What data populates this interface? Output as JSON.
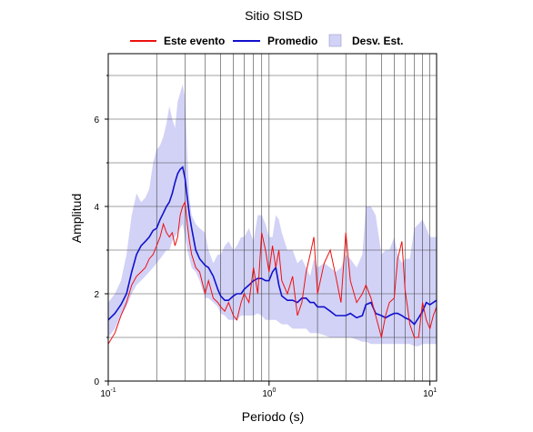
{
  "chart_data": {
    "type": "line",
    "title": "Sitio SISD",
    "xlabel": "Periodo (s)",
    "ylabel": "Amplitud",
    "x_scale": "log",
    "xlim": [
      0.1,
      11
    ],
    "ylim": [
      0,
      7.5
    ],
    "grid": true,
    "legend_position": "top",
    "x_ticks": [
      {
        "base": "10",
        "exp": "-1",
        "value": 0.1
      },
      {
        "base": "10",
        "exp": "0",
        "value": 1
      },
      {
        "base": "10",
        "exp": "1",
        "value": 10
      }
    ],
    "y_ticks": [
      {
        "label": "0",
        "value": 0
      },
      {
        "label": "2",
        "value": 2
      },
      {
        "label": "4",
        "value": 4
      },
      {
        "label": "6",
        "value": 6
      }
    ],
    "legend": {
      "event": "Este evento",
      "mean": "Promedio",
      "band": "Desv. Est."
    },
    "colors": {
      "event": "#ee1111",
      "mean": "#1111cc",
      "band": "#d2d2f7",
      "grid": "#444444"
    },
    "x": [
      0.1,
      0.11,
      0.12,
      0.13,
      0.14,
      0.15,
      0.16,
      0.17,
      0.18,
      0.19,
      0.2,
      0.21,
      0.22,
      0.23,
      0.24,
      0.25,
      0.26,
      0.27,
      0.28,
      0.29,
      0.3,
      0.31,
      0.32,
      0.33,
      0.35,
      0.37,
      0.4,
      0.42,
      0.45,
      0.48,
      0.5,
      0.53,
      0.56,
      0.6,
      0.63,
      0.67,
      0.7,
      0.75,
      0.8,
      0.85,
      0.9,
      0.95,
      1.0,
      1.05,
      1.1,
      1.15,
      1.2,
      1.3,
      1.4,
      1.5,
      1.6,
      1.7,
      1.8,
      1.9,
      2.0,
      2.2,
      2.4,
      2.6,
      2.8,
      3.0,
      3.2,
      3.5,
      3.8,
      4.0,
      4.3,
      4.6,
      5.0,
      5.3,
      5.6,
      6.0,
      6.3,
      6.7,
      7.0,
      7.5,
      8.0,
      8.5,
      9.0,
      9.5,
      10.0,
      10.5,
      11.0
    ],
    "series": [
      {
        "key": "event",
        "values": [
          0.85,
          1.1,
          1.5,
          1.8,
          2.2,
          2.4,
          2.5,
          2.6,
          2.8,
          2.9,
          3.1,
          3.3,
          3.6,
          3.4,
          3.3,
          3.4,
          3.1,
          3.3,
          3.8,
          4.0,
          4.1,
          3.6,
          3.2,
          2.9,
          2.6,
          2.5,
          2.0,
          2.3,
          1.9,
          1.8,
          1.7,
          1.6,
          1.8,
          1.5,
          1.4,
          1.8,
          2.0,
          1.8,
          2.6,
          2.0,
          3.4,
          3.0,
          2.5,
          3.1,
          2.6,
          3.0,
          2.3,
          2.0,
          2.4,
          1.5,
          1.8,
          2.5,
          2.9,
          3.3,
          2.0,
          2.7,
          3.0,
          2.4,
          1.8,
          3.4,
          2.3,
          1.8,
          2.0,
          2.2,
          1.9,
          1.5,
          1.0,
          1.5,
          1.8,
          1.9,
          2.8,
          3.2,
          2.1,
          1.3,
          1.0,
          1.0,
          1.8,
          1.4,
          1.2,
          1.5,
          1.7
        ]
      },
      {
        "key": "mean",
        "values": [
          1.4,
          1.55,
          1.75,
          2.0,
          2.5,
          2.9,
          3.1,
          3.2,
          3.3,
          3.45,
          3.5,
          3.7,
          3.85,
          4.0,
          4.1,
          4.3,
          4.55,
          4.75,
          4.85,
          4.9,
          4.65,
          4.2,
          3.8,
          3.5,
          3.0,
          2.8,
          2.65,
          2.6,
          2.4,
          2.1,
          1.95,
          1.85,
          1.85,
          1.95,
          2.0,
          2.0,
          2.1,
          2.2,
          2.3,
          2.35,
          2.35,
          2.3,
          2.3,
          2.5,
          2.6,
          2.2,
          1.95,
          1.85,
          1.85,
          1.8,
          1.9,
          1.9,
          1.8,
          1.8,
          1.7,
          1.7,
          1.6,
          1.5,
          1.5,
          1.5,
          1.55,
          1.45,
          1.5,
          1.75,
          1.8,
          1.55,
          1.5,
          1.45,
          1.5,
          1.55,
          1.55,
          1.5,
          1.45,
          1.4,
          1.3,
          1.45,
          1.6,
          1.8,
          1.75,
          1.8,
          1.85
        ]
      }
    ],
    "band": {
      "upper": [
        1.8,
        2.0,
        2.3,
        2.9,
        3.8,
        4.3,
        4.1,
        4.2,
        4.4,
        5.0,
        5.3,
        5.4,
        5.6,
        5.9,
        6.3,
        6.0,
        5.8,
        6.4,
        6.6,
        6.8,
        6.5,
        5.2,
        4.2,
        3.8,
        3.6,
        3.5,
        3.4,
        3.0,
        2.7,
        2.9,
        2.9,
        3.1,
        3.2,
        3.0,
        3.1,
        3.3,
        3.3,
        3.5,
        3.2,
        3.8,
        3.8,
        3.6,
        3.3,
        3.3,
        3.8,
        3.7,
        3.4,
        3.0,
        3.0,
        2.7,
        2.8,
        2.6,
        2.4,
        2.8,
        2.6,
        2.7,
        2.6,
        2.5,
        2.6,
        2.9,
        2.8,
        2.6,
        2.9,
        4.0,
        4.0,
        3.8,
        2.9,
        3.0,
        3.0,
        3.3,
        2.9,
        2.7,
        2.8,
        2.8,
        3.5,
        3.6,
        3.7,
        3.5,
        3.3,
        3.3,
        3.3
      ],
      "lower": [
        1.0,
        1.2,
        1.5,
        1.7,
        2.0,
        2.2,
        2.3,
        2.4,
        2.5,
        2.6,
        2.7,
        2.8,
        2.9,
        3.0,
        3.0,
        3.2,
        3.3,
        3.4,
        3.5,
        3.6,
        3.3,
        3.0,
        2.8,
        2.6,
        2.5,
        2.3,
        1.9,
        1.9,
        1.8,
        1.7,
        1.55,
        1.5,
        1.4,
        1.4,
        1.4,
        1.5,
        1.5,
        1.5,
        1.5,
        1.55,
        1.5,
        1.4,
        1.4,
        1.4,
        1.4,
        1.35,
        1.3,
        1.3,
        1.2,
        1.2,
        1.2,
        1.2,
        1.1,
        1.1,
        1.1,
        1.05,
        1.0,
        1.0,
        1.0,
        1.0,
        1.0,
        0.95,
        0.9,
        0.9,
        0.85,
        0.85,
        0.85,
        0.85,
        0.85,
        0.85,
        0.85,
        0.85,
        0.85,
        0.85,
        0.8,
        0.8,
        0.85,
        0.85,
        0.85,
        0.85,
        0.85
      ]
    }
  }
}
